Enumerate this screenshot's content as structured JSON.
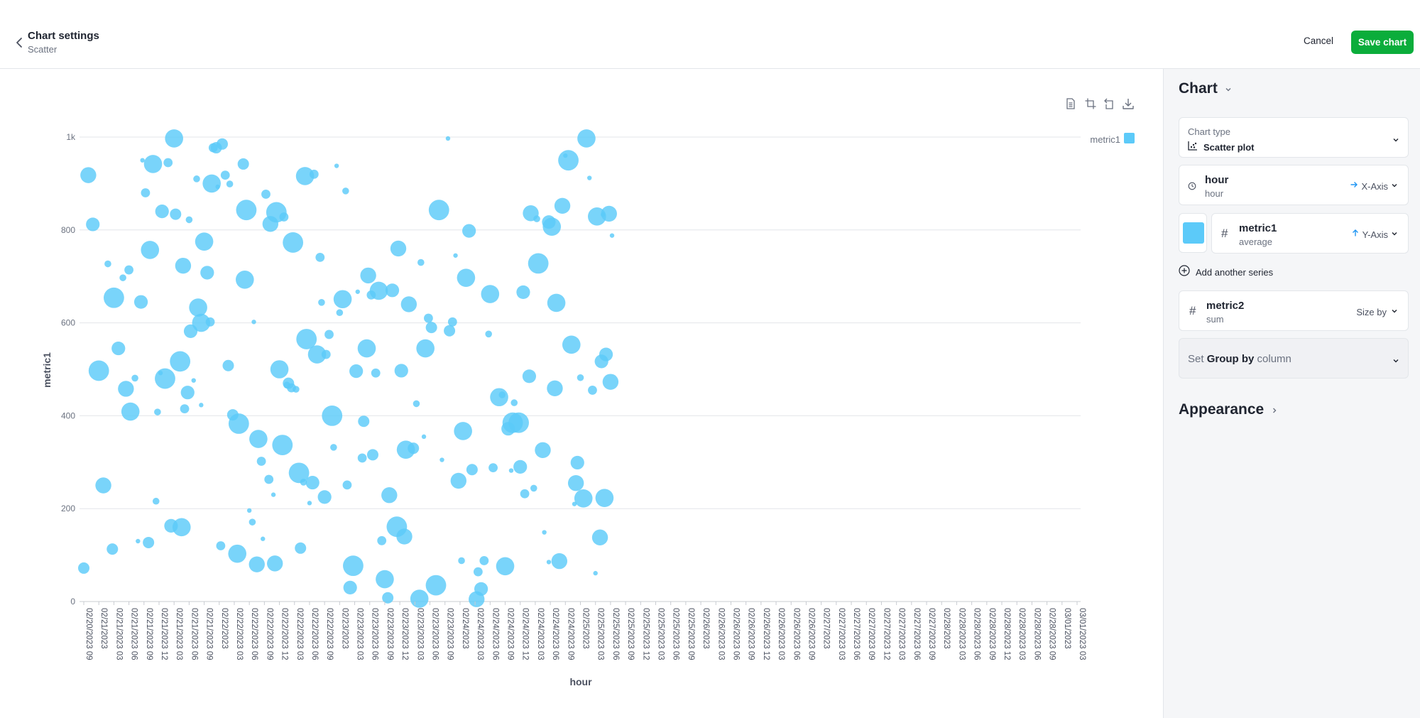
{
  "header": {
    "title": "Chart settings",
    "subtitle": "Scatter",
    "cancel_label": "Cancel",
    "save_label": "Save chart"
  },
  "toolbar": {
    "icons": [
      "document-icon",
      "crop-icon",
      "rotate-icon",
      "download-icon"
    ]
  },
  "sidebar": {
    "chart_heading": "Chart",
    "chart_type_label": "Chart type",
    "chart_type_value": "Scatter plot",
    "x_field": {
      "name": "hour",
      "sub": "hour",
      "role": "X-Axis"
    },
    "y_field": {
      "name": "metric1",
      "sub": "average",
      "role": "Y-Axis",
      "color": "#5ccaf9"
    },
    "add_series_label": "Add another series",
    "size_field": {
      "name": "metric2",
      "sub": "sum",
      "role": "Size by"
    },
    "group_by": {
      "prefix": "Set",
      "strong": "Group by",
      "suffix": "column"
    },
    "appearance_heading": "Appearance"
  },
  "colors": {
    "accent": "#0bad3b",
    "series": "#5ccaf9",
    "axis_role": "#2196f3"
  },
  "chart_data": {
    "type": "scatter",
    "xlabel": "hour",
    "ylabel": "metric1",
    "ylim": [
      0,
      1000
    ],
    "yticks": [
      0,
      200,
      400,
      600,
      800,
      1000
    ],
    "ytick_labels": [
      "0",
      "200",
      "400",
      "600",
      "800",
      "1k"
    ],
    "xticks": [
      "02/20/2023 09",
      "02/21/2023",
      "02/21/2023 03",
      "02/21/2023 06",
      "02/21/2023 09",
      "02/21/2023 12",
      "02/21/2023 03",
      "02/21/2023 06",
      "02/21/2023 09",
      "02/22/2023",
      "02/22/2023 03",
      "02/22/2023 06",
      "02/22/2023 09",
      "02/22/2023 12",
      "02/22/2023 03",
      "02/22/2023 06",
      "02/22/2023 09",
      "02/23/2023",
      "02/23/2023 03",
      "02/23/2023 06",
      "02/23/2023 09",
      "02/23/2023 12",
      "02/23/2023 03",
      "02/23/2023 06",
      "02/23/2023 09",
      "02/24/2023",
      "02/24/2023 03",
      "02/24/2023 06",
      "02/24/2023 09",
      "02/24/2023 12",
      "02/24/2023 03",
      "02/24/2023 06",
      "02/24/2023 09",
      "02/25/2023",
      "02/25/2023 03",
      "02/25/2023 06",
      "02/25/2023 09",
      "02/25/2023 12",
      "02/25/2023 03",
      "02/25/2023 06",
      "02/25/2023 09",
      "02/26/2023",
      "02/26/2023 03",
      "02/26/2023 06",
      "02/26/2023 09",
      "02/26/2023 12",
      "02/26/2023 03",
      "02/26/2023 06",
      "02/26/2023 09",
      "02/27/2023",
      "02/27/2023 03",
      "02/27/2023 06",
      "02/27/2023 09",
      "02/27/2023 12",
      "02/27/2023 03",
      "02/27/2023 06",
      "02/27/2023 09",
      "02/28/2023",
      "02/28/2023 03",
      "02/28/2023 06",
      "02/28/2023 09",
      "02/28/2023 12",
      "02/28/2023 03",
      "02/28/2023 06",
      "02/28/2023 09",
      "03/01/2023",
      "03/01/2023 03"
    ],
    "legend": [
      {
        "name": "metric1",
        "color": "#5ccaf9",
        "position": "top-right"
      }
    ],
    "grid": true,
    "series": [
      {
        "name": "metric1",
        "color": "#5ccaf9",
        "points": [
          [
            0.0,
            72,
            5
          ],
          [
            0.3,
            918,
            7
          ],
          [
            0.6,
            812,
            6
          ],
          [
            1.0,
            497,
            9
          ],
          [
            1.3,
            250,
            7
          ],
          [
            1.6,
            727,
            3
          ],
          [
            1.9,
            113,
            5
          ],
          [
            2.0,
            654,
            9
          ],
          [
            2.3,
            545,
            6
          ],
          [
            2.6,
            697,
            3
          ],
          [
            2.8,
            458,
            7
          ],
          [
            3.0,
            714,
            4
          ],
          [
            3.1,
            409,
            8
          ],
          [
            3.4,
            481,
            3
          ],
          [
            3.6,
            130,
            2
          ],
          [
            3.8,
            645,
            6
          ],
          [
            3.9,
            950,
            2
          ],
          [
            4.1,
            880,
            4
          ],
          [
            4.3,
            127,
            5
          ],
          [
            4.4,
            757,
            8
          ],
          [
            4.6,
            942,
            8
          ],
          [
            4.8,
            216,
            3
          ],
          [
            4.9,
            408,
            3
          ],
          [
            5.1,
            492,
            2
          ],
          [
            5.2,
            840,
            6
          ],
          [
            5.4,
            480,
            9
          ],
          [
            5.6,
            945,
            4
          ],
          [
            5.8,
            163,
            6
          ],
          [
            6.0,
            997,
            8
          ],
          [
            6.1,
            834,
            5
          ],
          [
            6.4,
            517,
            9
          ],
          [
            6.5,
            160,
            8
          ],
          [
            6.6,
            723,
            7
          ],
          [
            6.7,
            415,
            4
          ],
          [
            6.9,
            450,
            6
          ],
          [
            7.0,
            822,
            3
          ],
          [
            7.1,
            582,
            6
          ],
          [
            7.3,
            476,
            2
          ],
          [
            7.5,
            910,
            3
          ],
          [
            7.6,
            633,
            8
          ],
          [
            7.8,
            600,
            8
          ],
          [
            7.8,
            423,
            2
          ],
          [
            8.0,
            775,
            8
          ],
          [
            8.2,
            708,
            6
          ],
          [
            8.4,
            602,
            4
          ],
          [
            8.5,
            900,
            8
          ],
          [
            8.6,
            977,
            4
          ],
          [
            8.8,
            977,
            5
          ],
          [
            8.9,
            893,
            2
          ],
          [
            9.1,
            120,
            4
          ],
          [
            9.2,
            985,
            5
          ],
          [
            9.4,
            918,
            4
          ],
          [
            9.6,
            508,
            5
          ],
          [
            9.7,
            899,
            3
          ],
          [
            9.9,
            402,
            5
          ],
          [
            10.2,
            103,
            8
          ],
          [
            10.3,
            383,
            9
          ],
          [
            10.6,
            942,
            5
          ],
          [
            10.7,
            693,
            8
          ],
          [
            10.8,
            843,
            9
          ],
          [
            11.0,
            196,
            2
          ],
          [
            11.2,
            171,
            3
          ],
          [
            11.3,
            602,
            2
          ],
          [
            11.5,
            80,
            7
          ],
          [
            11.6,
            350,
            8
          ],
          [
            11.8,
            302,
            4
          ],
          [
            11.9,
            135,
            2
          ],
          [
            12.1,
            877,
            4
          ],
          [
            12.3,
            263,
            4
          ],
          [
            12.4,
            813,
            7
          ],
          [
            12.6,
            230,
            2
          ],
          [
            12.7,
            82,
            7
          ],
          [
            12.8,
            838,
            9
          ],
          [
            13.0,
            500,
            8
          ],
          [
            13.2,
            337,
            9
          ],
          [
            13.3,
            828,
            4
          ],
          [
            13.5,
            466,
            3
          ],
          [
            13.6,
            470,
            5
          ],
          [
            13.8,
            460,
            4
          ],
          [
            13.9,
            773,
            9
          ],
          [
            14.1,
            457,
            3
          ],
          [
            14.3,
            277,
            9
          ],
          [
            14.4,
            115,
            5
          ],
          [
            14.6,
            257,
            3
          ],
          [
            14.7,
            916,
            8
          ],
          [
            14.8,
            565,
            9
          ],
          [
            15.0,
            212,
            2
          ],
          [
            15.2,
            256,
            6
          ],
          [
            15.3,
            920,
            4
          ],
          [
            15.5,
            532,
            8
          ],
          [
            15.7,
            741,
            4
          ],
          [
            15.8,
            644,
            3
          ],
          [
            16.0,
            225,
            6
          ],
          [
            16.1,
            532,
            4
          ],
          [
            16.3,
            575,
            4
          ],
          [
            16.5,
            400,
            9
          ],
          [
            16.6,
            332,
            3
          ],
          [
            16.8,
            938,
            2
          ],
          [
            17.0,
            622,
            3
          ],
          [
            17.2,
            651,
            8
          ],
          [
            17.4,
            884,
            3
          ],
          [
            17.5,
            251,
            4
          ],
          [
            17.7,
            30,
            6
          ],
          [
            17.9,
            77,
            9
          ],
          [
            18.1,
            496,
            6
          ],
          [
            18.2,
            667,
            2
          ],
          [
            18.5,
            309,
            4
          ],
          [
            18.6,
            388,
            5
          ],
          [
            18.8,
            545,
            8
          ],
          [
            18.9,
            702,
            7
          ],
          [
            19.1,
            660,
            4
          ],
          [
            19.2,
            316,
            5
          ],
          [
            19.4,
            492,
            4
          ],
          [
            19.6,
            669,
            8
          ],
          [
            19.8,
            131,
            4
          ],
          [
            20.0,
            48,
            8
          ],
          [
            20.2,
            8,
            5
          ],
          [
            20.3,
            229,
            7
          ],
          [
            20.5,
            670,
            6
          ],
          [
            20.8,
            161,
            9
          ],
          [
            20.9,
            760,
            7
          ],
          [
            21.1,
            497,
            6
          ],
          [
            21.3,
            140,
            7
          ],
          [
            21.4,
            327,
            8
          ],
          [
            21.6,
            640,
            7
          ],
          [
            21.9,
            330,
            5
          ],
          [
            22.1,
            426,
            3
          ],
          [
            22.3,
            6,
            8
          ],
          [
            22.4,
            730,
            3
          ],
          [
            22.6,
            355,
            2
          ],
          [
            22.7,
            545,
            8
          ],
          [
            22.9,
            610,
            4
          ],
          [
            23.1,
            590,
            5
          ],
          [
            23.4,
            35,
            9
          ],
          [
            23.6,
            843,
            9
          ],
          [
            23.8,
            305,
            2
          ],
          [
            24.2,
            997,
            2
          ],
          [
            24.3,
            583,
            5
          ],
          [
            24.5,
            602,
            4
          ],
          [
            24.7,
            745,
            2
          ],
          [
            24.9,
            260,
            7
          ],
          [
            25.1,
            88,
            3
          ],
          [
            25.2,
            367,
            8
          ],
          [
            25.4,
            697,
            8
          ],
          [
            25.6,
            798,
            6
          ],
          [
            25.8,
            284,
            5
          ],
          [
            26.1,
            5,
            7
          ],
          [
            26.2,
            64,
            4
          ],
          [
            26.4,
            27,
            6
          ],
          [
            26.6,
            88,
            4
          ],
          [
            26.9,
            576,
            3
          ],
          [
            27.0,
            662,
            8
          ],
          [
            27.2,
            288,
            4
          ],
          [
            27.6,
            440,
            8
          ],
          [
            27.8,
            445,
            3
          ],
          [
            28.0,
            76,
            8
          ],
          [
            28.2,
            372,
            6
          ],
          [
            28.4,
            282,
            2
          ],
          [
            28.5,
            385,
            9
          ],
          [
            28.6,
            428,
            3
          ],
          [
            28.9,
            385,
            9
          ],
          [
            29.0,
            290,
            6
          ],
          [
            29.2,
            666,
            6
          ],
          [
            29.3,
            232,
            4
          ],
          [
            29.6,
            485,
            6
          ],
          [
            29.7,
            836,
            7
          ],
          [
            29.9,
            244,
            3
          ],
          [
            30.1,
            824,
            3
          ],
          [
            30.2,
            728,
            9
          ],
          [
            30.5,
            326,
            7
          ],
          [
            30.6,
            149,
            2
          ],
          [
            30.9,
            85,
            2
          ],
          [
            30.9,
            817,
            6
          ],
          [
            31.1,
            807,
            8
          ],
          [
            31.3,
            459,
            7
          ],
          [
            31.4,
            643,
            8
          ],
          [
            31.6,
            87,
            7
          ],
          [
            31.8,
            852,
            7
          ],
          [
            32.0,
            960,
            2
          ],
          [
            32.2,
            950,
            9
          ],
          [
            32.4,
            553,
            8
          ],
          [
            32.6,
            210,
            2
          ],
          [
            32.7,
            255,
            7
          ],
          [
            32.8,
            299,
            6
          ],
          [
            33.0,
            482,
            3
          ],
          [
            33.2,
            222,
            8
          ],
          [
            33.4,
            997,
            8
          ],
          [
            33.6,
            912,
            2
          ],
          [
            33.8,
            455,
            4
          ],
          [
            34.0,
            61,
            2
          ],
          [
            34.1,
            829,
            8
          ],
          [
            34.3,
            138,
            7
          ],
          [
            34.4,
            517,
            6
          ],
          [
            34.5,
            833,
            2
          ],
          [
            34.6,
            223,
            8
          ],
          [
            34.7,
            532,
            6
          ],
          [
            34.9,
            835,
            7
          ],
          [
            35.0,
            473,
            7
          ],
          [
            35.1,
            788,
            2
          ]
        ]
      }
    ]
  }
}
